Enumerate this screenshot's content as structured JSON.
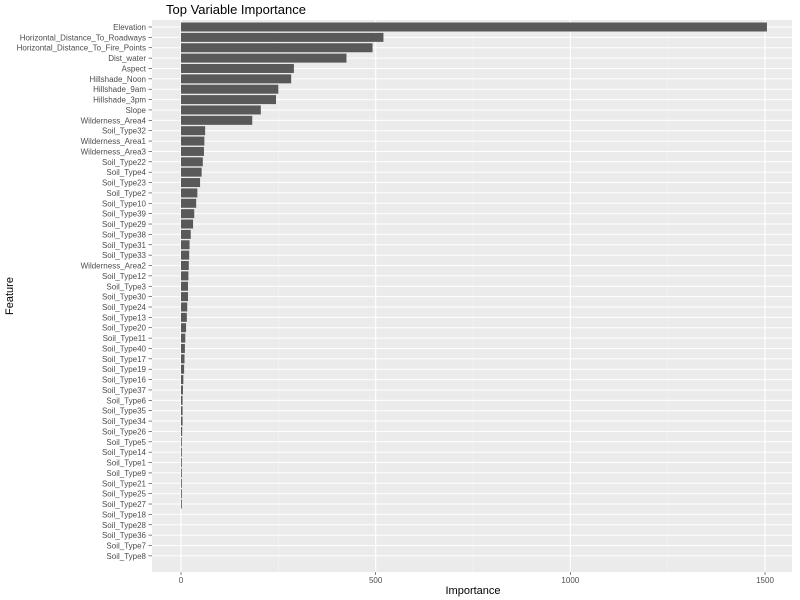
{
  "chart_data": {
    "type": "bar",
    "orientation": "horizontal",
    "title": "Top Variable Importance",
    "xlabel": "Importance",
    "ylabel": "Feature",
    "xlim": [
      0,
      1560
    ],
    "xticks": [
      0,
      500,
      1000,
      1500
    ],
    "grid": true,
    "legend": "none",
    "colors": {
      "bar": "#595959",
      "panel": "#ebebeb",
      "grid_major": "#ffffff",
      "grid_minor": "#f5f5f5"
    },
    "categories": [
      "Elevation",
      "Horizontal_Distance_To_Roadways",
      "Horizontal_Distance_To_Fire_Points",
      "Dist_water",
      "Aspect",
      "Hillshade_Noon",
      "Hillshade_9am",
      "Hillshade_3pm",
      "Slope",
      "Wilderness_Area4",
      "Soil_Type32",
      "Wilderness_Area1",
      "Wilderness_Area3",
      "Soil_Type22",
      "Soil_Type4",
      "Soil_Type23",
      "Soil_Type2",
      "Soil_Type10",
      "Soil_Type39",
      "Soil_Type29",
      "Soil_Type38",
      "Soil_Type31",
      "Soil_Type33",
      "Wilderness_Area2",
      "Soil_Type12",
      "Soil_Type3",
      "Soil_Type30",
      "Soil_Type24",
      "Soil_Type13",
      "Soil_Type20",
      "Soil_Type11",
      "Soil_Type40",
      "Soil_Type17",
      "Soil_Type19",
      "Soil_Type16",
      "Soil_Type37",
      "Soil_Type6",
      "Soil_Type35",
      "Soil_Type34",
      "Soil_Type26",
      "Soil_Type5",
      "Soil_Type14",
      "Soil_Type1",
      "Soil_Type9",
      "Soil_Type21",
      "Soil_Type25",
      "Soil_Type27",
      "Soil_Type18",
      "Soil_Type28",
      "Soil_Type36",
      "Soil_Type7",
      "Soil_Type8"
    ],
    "values": [
      1505,
      520,
      492,
      425,
      290,
      283,
      250,
      244,
      205,
      183,
      62,
      60,
      59,
      56,
      53,
      49,
      42,
      39,
      34,
      31,
      25,
      22,
      21,
      20,
      19,
      18,
      18,
      16,
      15,
      13,
      11,
      10,
      9,
      8,
      6,
      5,
      4,
      4,
      4,
      3,
      2,
      2,
      2,
      2,
      2,
      1,
      1,
      0,
      0,
      0,
      0,
      0
    ]
  }
}
